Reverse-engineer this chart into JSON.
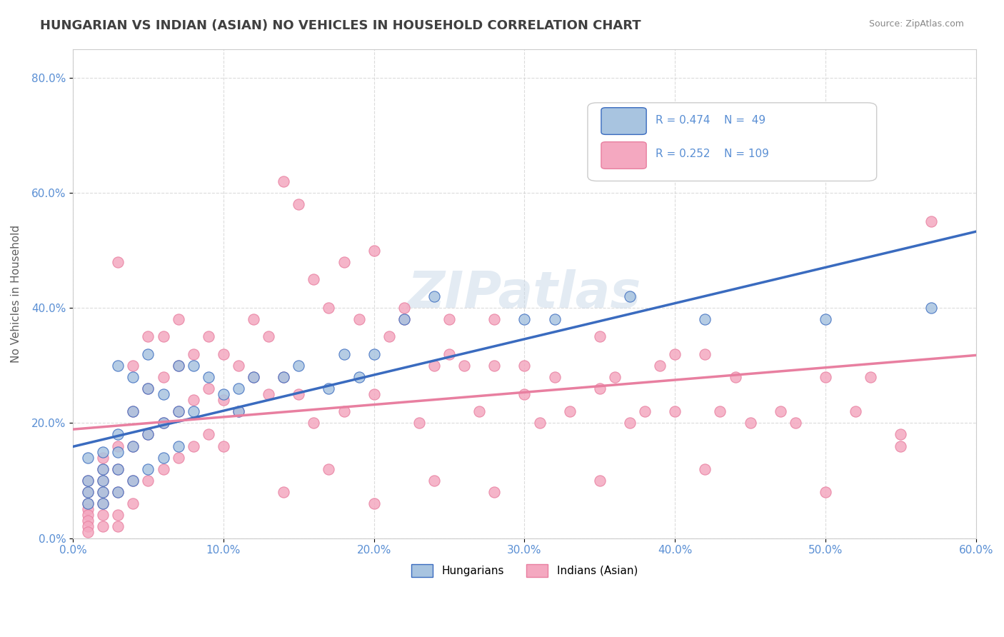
{
  "title": "HUNGARIAN VS INDIAN (ASIAN) NO VEHICLES IN HOUSEHOLD CORRELATION CHART",
  "source": "Source: ZipAtlas.com",
  "xlabel": "",
  "ylabel": "No Vehicles in Household",
  "xlim": [
    0.0,
    0.6
  ],
  "ylim": [
    0.0,
    0.85
  ],
  "xticks": [
    0.0,
    0.1,
    0.2,
    0.3,
    0.4,
    0.5,
    0.6
  ],
  "yticks": [
    0.0,
    0.2,
    0.4,
    0.6,
    0.8
  ],
  "xtick_labels": [
    "0.0%",
    "10.0%",
    "20.0%",
    "30.0%",
    "40.0%",
    "50.0%",
    "60.0%"
  ],
  "ytick_labels": [
    "0.0%",
    "20.0%",
    "40.0%",
    "60.0%",
    "80.0%"
  ],
  "hungarian_color": "#a8c4e0",
  "indian_color": "#f4a8c0",
  "hungarian_line_color": "#3a6bbf",
  "indian_line_color": "#e87fa0",
  "legend_box_color": "#f5f5f5",
  "r_hungarian": 0.474,
  "n_hungarian": 49,
  "r_indian": 0.252,
  "n_indian": 109,
  "watermark": "ZIPatlas",
  "background_color": "#ffffff",
  "grid_color": "#cccccc",
  "title_color": "#404040",
  "axis_label_color": "#606060",
  "tick_label_color": "#5a8fd4",
  "hungarian_x": [
    0.01,
    0.01,
    0.01,
    0.01,
    0.02,
    0.02,
    0.02,
    0.02,
    0.02,
    0.03,
    0.03,
    0.03,
    0.03,
    0.03,
    0.04,
    0.04,
    0.04,
    0.04,
    0.05,
    0.05,
    0.05,
    0.05,
    0.06,
    0.06,
    0.06,
    0.07,
    0.07,
    0.07,
    0.08,
    0.08,
    0.09,
    0.1,
    0.11,
    0.11,
    0.12,
    0.14,
    0.15,
    0.17,
    0.18,
    0.19,
    0.2,
    0.22,
    0.24,
    0.3,
    0.32,
    0.37,
    0.42,
    0.5,
    0.57
  ],
  "hungarian_y": [
    0.14,
    0.1,
    0.08,
    0.06,
    0.15,
    0.12,
    0.1,
    0.08,
    0.06,
    0.3,
    0.18,
    0.15,
    0.12,
    0.08,
    0.28,
    0.22,
    0.16,
    0.1,
    0.32,
    0.26,
    0.18,
    0.12,
    0.25,
    0.2,
    0.14,
    0.3,
    0.22,
    0.16,
    0.3,
    0.22,
    0.28,
    0.25,
    0.26,
    0.22,
    0.28,
    0.28,
    0.3,
    0.26,
    0.32,
    0.28,
    0.32,
    0.38,
    0.42,
    0.38,
    0.38,
    0.42,
    0.38,
    0.38,
    0.4
  ],
  "indian_x": [
    0.01,
    0.01,
    0.01,
    0.01,
    0.01,
    0.01,
    0.01,
    0.01,
    0.02,
    0.02,
    0.02,
    0.02,
    0.02,
    0.02,
    0.02,
    0.03,
    0.03,
    0.03,
    0.03,
    0.03,
    0.03,
    0.04,
    0.04,
    0.04,
    0.04,
    0.04,
    0.05,
    0.05,
    0.05,
    0.05,
    0.06,
    0.06,
    0.06,
    0.06,
    0.07,
    0.07,
    0.07,
    0.07,
    0.08,
    0.08,
    0.08,
    0.09,
    0.09,
    0.09,
    0.1,
    0.1,
    0.1,
    0.11,
    0.11,
    0.12,
    0.12,
    0.13,
    0.13,
    0.14,
    0.14,
    0.15,
    0.15,
    0.16,
    0.16,
    0.17,
    0.18,
    0.18,
    0.19,
    0.2,
    0.2,
    0.21,
    0.22,
    0.23,
    0.24,
    0.25,
    0.26,
    0.27,
    0.28,
    0.3,
    0.31,
    0.32,
    0.33,
    0.35,
    0.36,
    0.37,
    0.38,
    0.39,
    0.4,
    0.42,
    0.43,
    0.45,
    0.47,
    0.5,
    0.52,
    0.55,
    0.22,
    0.25,
    0.28,
    0.3,
    0.35,
    0.4,
    0.44,
    0.48,
    0.53,
    0.57,
    0.14,
    0.17,
    0.2,
    0.24,
    0.28,
    0.35,
    0.42,
    0.5,
    0.55
  ],
  "indian_y": [
    0.08,
    0.06,
    0.05,
    0.04,
    0.03,
    0.02,
    0.01,
    0.1,
    0.12,
    0.1,
    0.08,
    0.06,
    0.04,
    0.02,
    0.14,
    0.48,
    0.16,
    0.12,
    0.08,
    0.04,
    0.02,
    0.3,
    0.22,
    0.16,
    0.1,
    0.06,
    0.35,
    0.26,
    0.18,
    0.1,
    0.35,
    0.28,
    0.2,
    0.12,
    0.38,
    0.3,
    0.22,
    0.14,
    0.32,
    0.24,
    0.16,
    0.35,
    0.26,
    0.18,
    0.32,
    0.24,
    0.16,
    0.3,
    0.22,
    0.38,
    0.28,
    0.35,
    0.25,
    0.62,
    0.28,
    0.58,
    0.25,
    0.45,
    0.2,
    0.4,
    0.48,
    0.22,
    0.38,
    0.5,
    0.25,
    0.35,
    0.38,
    0.2,
    0.3,
    0.38,
    0.3,
    0.22,
    0.3,
    0.25,
    0.2,
    0.28,
    0.22,
    0.35,
    0.28,
    0.2,
    0.22,
    0.3,
    0.22,
    0.32,
    0.22,
    0.2,
    0.22,
    0.28,
    0.22,
    0.18,
    0.4,
    0.32,
    0.38,
    0.3,
    0.26,
    0.32,
    0.28,
    0.2,
    0.28,
    0.55,
    0.08,
    0.12,
    0.06,
    0.1,
    0.08,
    0.1,
    0.12,
    0.08,
    0.16
  ]
}
